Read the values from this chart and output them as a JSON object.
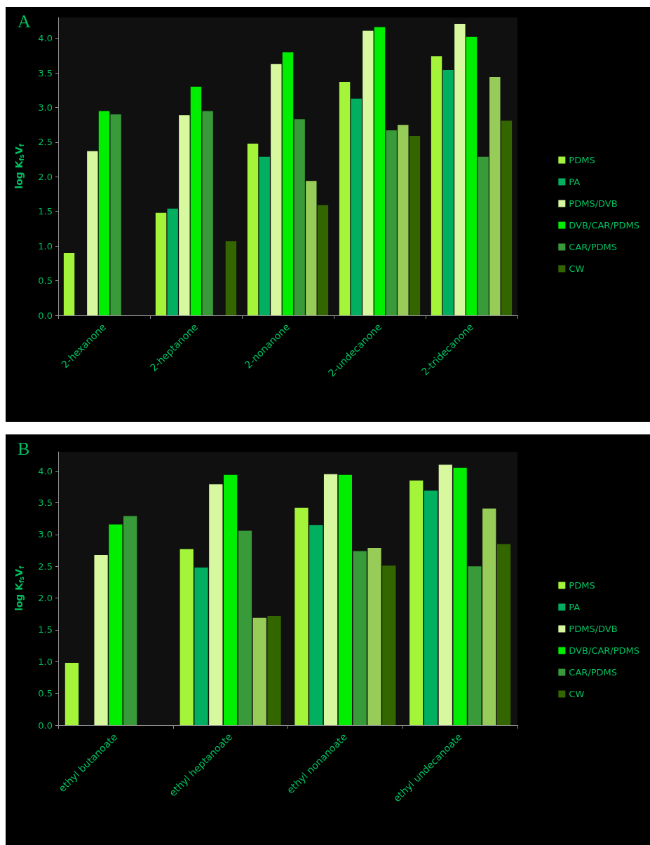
{
  "chart_data": [
    {
      "type": "bar",
      "title": "A",
      "ylabel": "log K$_{fs}$V$_{f}$",
      "categories": [
        "2-hexanone",
        "2-heptanone",
        "2-nonanone",
        "2-undecanone",
        "2-tridecanone"
      ],
      "series": [
        {
          "name": "PDMS",
          "color": "#a4f53a",
          "values": [
            0.9,
            1.48,
            2.48,
            3.37,
            3.74
          ]
        },
        {
          "name": "PA",
          "color": "#00b060",
          "values": [
            null,
            1.54,
            2.29,
            3.13,
            3.54
          ]
        },
        {
          "name": "PDMS/DVB",
          "color": "#d8f8a0",
          "values": [
            2.37,
            2.89,
            3.63,
            4.11,
            4.21
          ]
        },
        {
          "name": "DVB/CAR/PDMS",
          "color": "#00ee00",
          "values": [
            2.95,
            3.3,
            3.8,
            4.16,
            4.02
          ]
        },
        {
          "name": "CAR/PDMS",
          "color": "#389a38",
          "values": [
            2.9,
            2.95,
            2.83,
            2.67,
            2.29
          ]
        },
        {
          "color": "#98cc58",
          "values": [
            null,
            null,
            1.94,
            2.75,
            3.44
          ]
        },
        {
          "name": "CW",
          "color": "#346600",
          "values": [
            null,
            1.07,
            1.59,
            2.59,
            2.81
          ]
        }
      ],
      "ylim": [
        0,
        4.3
      ],
      "yticks": [
        {
          "value": 0,
          "label": "0.0"
        },
        0.5,
        {
          "value": 1,
          "label": "1.0"
        },
        1.5,
        {
          "value": 2,
          "label": "2.0"
        },
        2.5,
        {
          "value": 3,
          "label": "3.0"
        },
        3.5,
        {
          "value": 4,
          "label": "4.0"
        }
      ],
      "grid": false,
      "legend": "right"
    },
    {
      "type": "bar",
      "title": "B",
      "ylabel": "log K$_{fs}$V$_{f}$",
      "categories": [
        "ethyl butanoate",
        "ethyl heptanoate",
        "ethyl nonanoate",
        "ethyl undecanoate"
      ],
      "series": [
        {
          "name": "PDMS",
          "color": "#a4f53a",
          "values": [
            0.98,
            2.77,
            3.42,
            3.85
          ]
        },
        {
          "name": "PA",
          "color": "#00b060",
          "values": [
            null,
            2.48,
            3.15,
            3.69
          ]
        },
        {
          "name": "PDMS/DVB",
          "color": "#d8f8a0",
          "values": [
            2.68,
            3.79,
            3.95,
            4.1
          ]
        },
        {
          "name": "DVB/CAR/PDMS",
          "color": "#00ee00",
          "values": [
            3.16,
            3.94,
            3.94,
            4.05
          ]
        },
        {
          "name": "CAR/PDMS",
          "color": "#389a38",
          "values": [
            3.29,
            3.06,
            2.74,
            2.5
          ]
        },
        {
          "color": "#98cc58",
          "values": [
            null,
            1.69,
            2.79,
            3.41
          ]
        },
        {
          "name": "CW",
          "color": "#346600",
          "values": [
            null,
            1.72,
            2.51,
            2.85
          ]
        }
      ],
      "ylim": [
        0,
        4.3
      ],
      "yticks": [
        {
          "value": 0,
          "label": "0.0"
        },
        0.5,
        {
          "value": 1,
          "label": "1.0"
        },
        1.5,
        {
          "value": 2,
          "label": "2.0"
        },
        2.5,
        {
          "value": 3,
          "label": "3.0"
        },
        3.5,
        {
          "value": 4,
          "label": "4.0"
        }
      ],
      "grid": false,
      "legend": "right"
    }
  ]
}
